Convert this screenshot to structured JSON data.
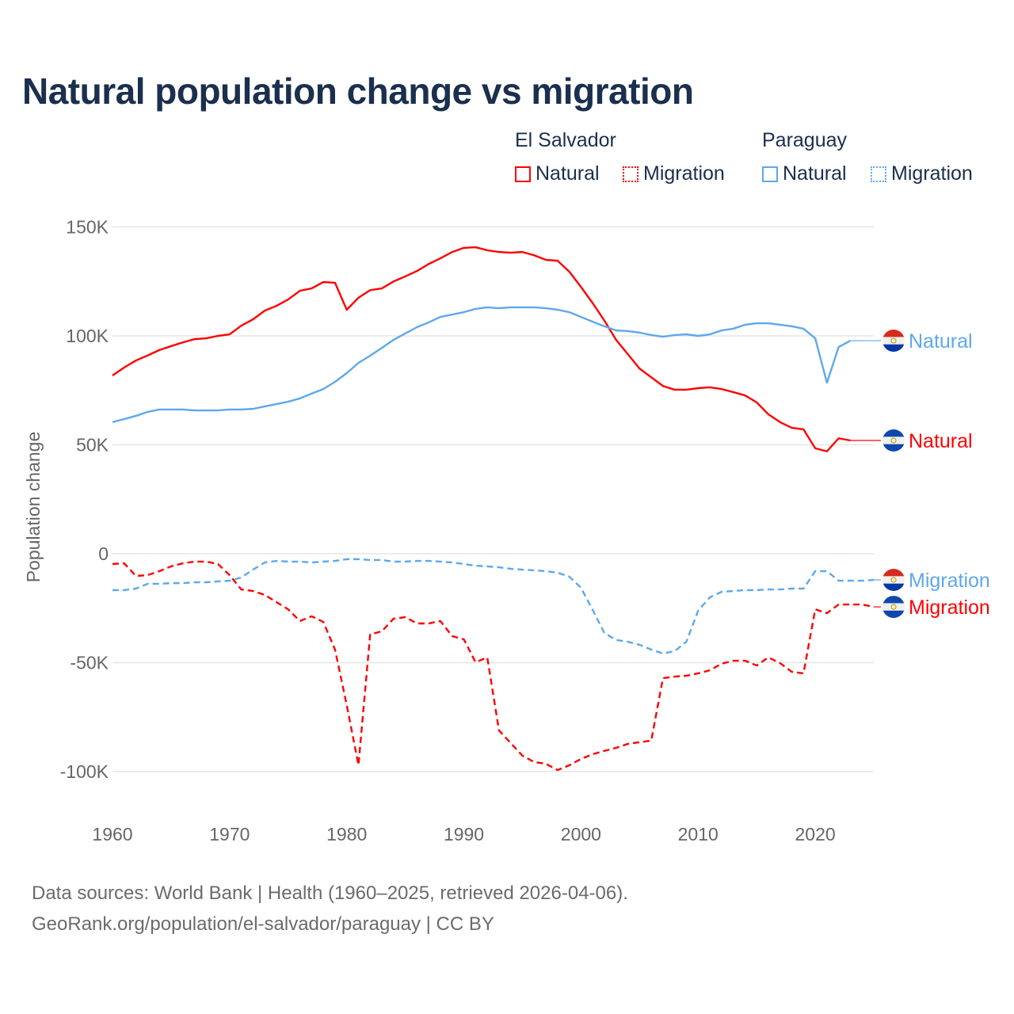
{
  "title": "Natural population change vs migration",
  "legend": {
    "groups": [
      {
        "name": "El Salvador",
        "color": "#ff0000",
        "items": [
          "Natural",
          "Migration"
        ]
      },
      {
        "name": "Paraguay",
        "color": "#5ea8ec",
        "items": [
          "Natural",
          "Migration"
        ]
      }
    ]
  },
  "footer": {
    "line1": "Data sources: World Bank | Health (1960–2025, retrieved 2026-04-06).",
    "line2": "GeoRank.org/population/el-salvador/paraguay | CC BY"
  },
  "chart_data": {
    "type": "line",
    "title": "Natural population change vs migration",
    "xlabel": "",
    "ylabel": "Population change",
    "xlim": [
      1960,
      2025
    ],
    "ylim": [
      -110000,
      150000
    ],
    "x_ticks": [
      "1960",
      "1970",
      "1980",
      "1990",
      "2000",
      "2010",
      "2020"
    ],
    "y_ticks": [
      {
        "v": 150000,
        "label": "150K"
      },
      {
        "v": 100000,
        "label": "100K"
      },
      {
        "v": 50000,
        "label": "50K"
      },
      {
        "v": 0,
        "label": "0"
      },
      {
        "v": -50000,
        "label": "-50K"
      },
      {
        "v": -100000,
        "label": "-100K"
      }
    ],
    "grid": true,
    "series": [
      {
        "name": "El Salvador Natural",
        "country": "El Salvador",
        "label": "Natural",
        "color": "#ff0000",
        "dash": false,
        "flag": "el-salvador",
        "start": 1960,
        "values_k": [
          81.8,
          85.5,
          88.7,
          91,
          93.5,
          95.3,
          97,
          98.5,
          98.9,
          100,
          100.7,
          104.7,
          107.6,
          111.6,
          113.8,
          116.7,
          120.7,
          121.8,
          124.7,
          124.4,
          112,
          117.5,
          121,
          121.8,
          125,
          127.3,
          129.8,
          133,
          135.6,
          138.5,
          140.4,
          140.7,
          139.3,
          138.5,
          138.2,
          138.5,
          137,
          134.9,
          134.5,
          129.5,
          122.5,
          115,
          107,
          98.2,
          91.6,
          85,
          81,
          77,
          75.3,
          75.3,
          76,
          76.4,
          75.6,
          74.2,
          72.7,
          69.5,
          64,
          60.4,
          57.8,
          57.1,
          48.4,
          47,
          53,
          52
        ]
      },
      {
        "name": "El Salvador Migration",
        "country": "El Salvador",
        "label": "Migration",
        "color": "#ff0000",
        "dash": true,
        "flag": "el-salvador",
        "start": 1960,
        "values_k": [
          -4.7,
          -4.4,
          -10.2,
          -9.8,
          -8,
          -5.8,
          -4.4,
          -3.6,
          -3.6,
          -4.7,
          -9.8,
          -16.4,
          -17.1,
          -18.9,
          -22.2,
          -25.5,
          -30.9,
          -28.7,
          -31.3,
          -44,
          -69.5,
          -97,
          -37,
          -35.6,
          -29.8,
          -29.1,
          -32,
          -32,
          -30.9,
          -37.8,
          -39.3,
          -49.8,
          -47.6,
          -81.1,
          -86.9,
          -92.7,
          -95.6,
          -96.4,
          -99.3,
          -97.1,
          -94.2,
          -92,
          -90.5,
          -89.1,
          -87.3,
          -86.5,
          -85.8,
          -57.1,
          -56.4,
          -56,
          -54.9,
          -53.5,
          -50.5,
          -49.1,
          -49.1,
          -51.3,
          -47.6,
          -50.2,
          -54.2,
          -54.9,
          -25.5,
          -27.3,
          -23.3,
          -23.3,
          -23.3,
          -24.4
        ]
      },
      {
        "name": "Paraguay Natural",
        "country": "Paraguay",
        "label": "Natural",
        "color": "#5ea8ec",
        "dash": false,
        "flag": "paraguay",
        "start": 1960,
        "values_k": [
          60.4,
          61.8,
          63.3,
          65.1,
          66.2,
          66.2,
          66.2,
          65.8,
          65.8,
          65.8,
          66.2,
          66.2,
          66.5,
          67.6,
          68.7,
          69.8,
          71.3,
          73.5,
          75.6,
          78.9,
          82.9,
          87.6,
          90.9,
          94.5,
          98.2,
          101.1,
          104,
          106.2,
          108.7,
          109.8,
          110.9,
          112.4,
          113.1,
          112.7,
          113.1,
          113.1,
          113.1,
          112.7,
          112,
          110.9,
          108.7,
          106.5,
          104.4,
          102.5,
          102.2,
          101.5,
          100.4,
          99.6,
          100.4,
          100.7,
          100,
          100.7,
          102.5,
          103.3,
          105.1,
          105.8,
          105.8,
          105.1,
          104.4,
          103.3,
          98.9,
          78.5,
          94.9,
          97.8
        ]
      },
      {
        "name": "Paraguay Migration",
        "country": "Paraguay",
        "label": "Migration",
        "color": "#5ea8ec",
        "dash": true,
        "flag": "paraguay",
        "start": 1960,
        "values_k": [
          -16.7,
          -16.7,
          -16,
          -13.8,
          -13.8,
          -13.5,
          -13.5,
          -13.1,
          -13.1,
          -12.7,
          -12.4,
          -10.9,
          -7.3,
          -4,
          -3.3,
          -3.6,
          -3.6,
          -4,
          -3.6,
          -3.3,
          -2.5,
          -2.5,
          -2.9,
          -2.9,
          -3.6,
          -3.6,
          -3.3,
          -3.3,
          -3.6,
          -4,
          -4.7,
          -5.5,
          -5.8,
          -6.2,
          -6.9,
          -7.3,
          -7.6,
          -8,
          -8.7,
          -10.5,
          -15.6,
          -25.8,
          -36.4,
          -39.6,
          -40.4,
          -41.8,
          -44,
          -45.8,
          -44.7,
          -40.4,
          -26.2,
          -20,
          -17.5,
          -17.1,
          -16.7,
          -16.7,
          -16.4,
          -16.4,
          -16,
          -16,
          -8,
          -8,
          -12.4,
          -12.4,
          -12.4,
          -12
        ]
      }
    ]
  }
}
